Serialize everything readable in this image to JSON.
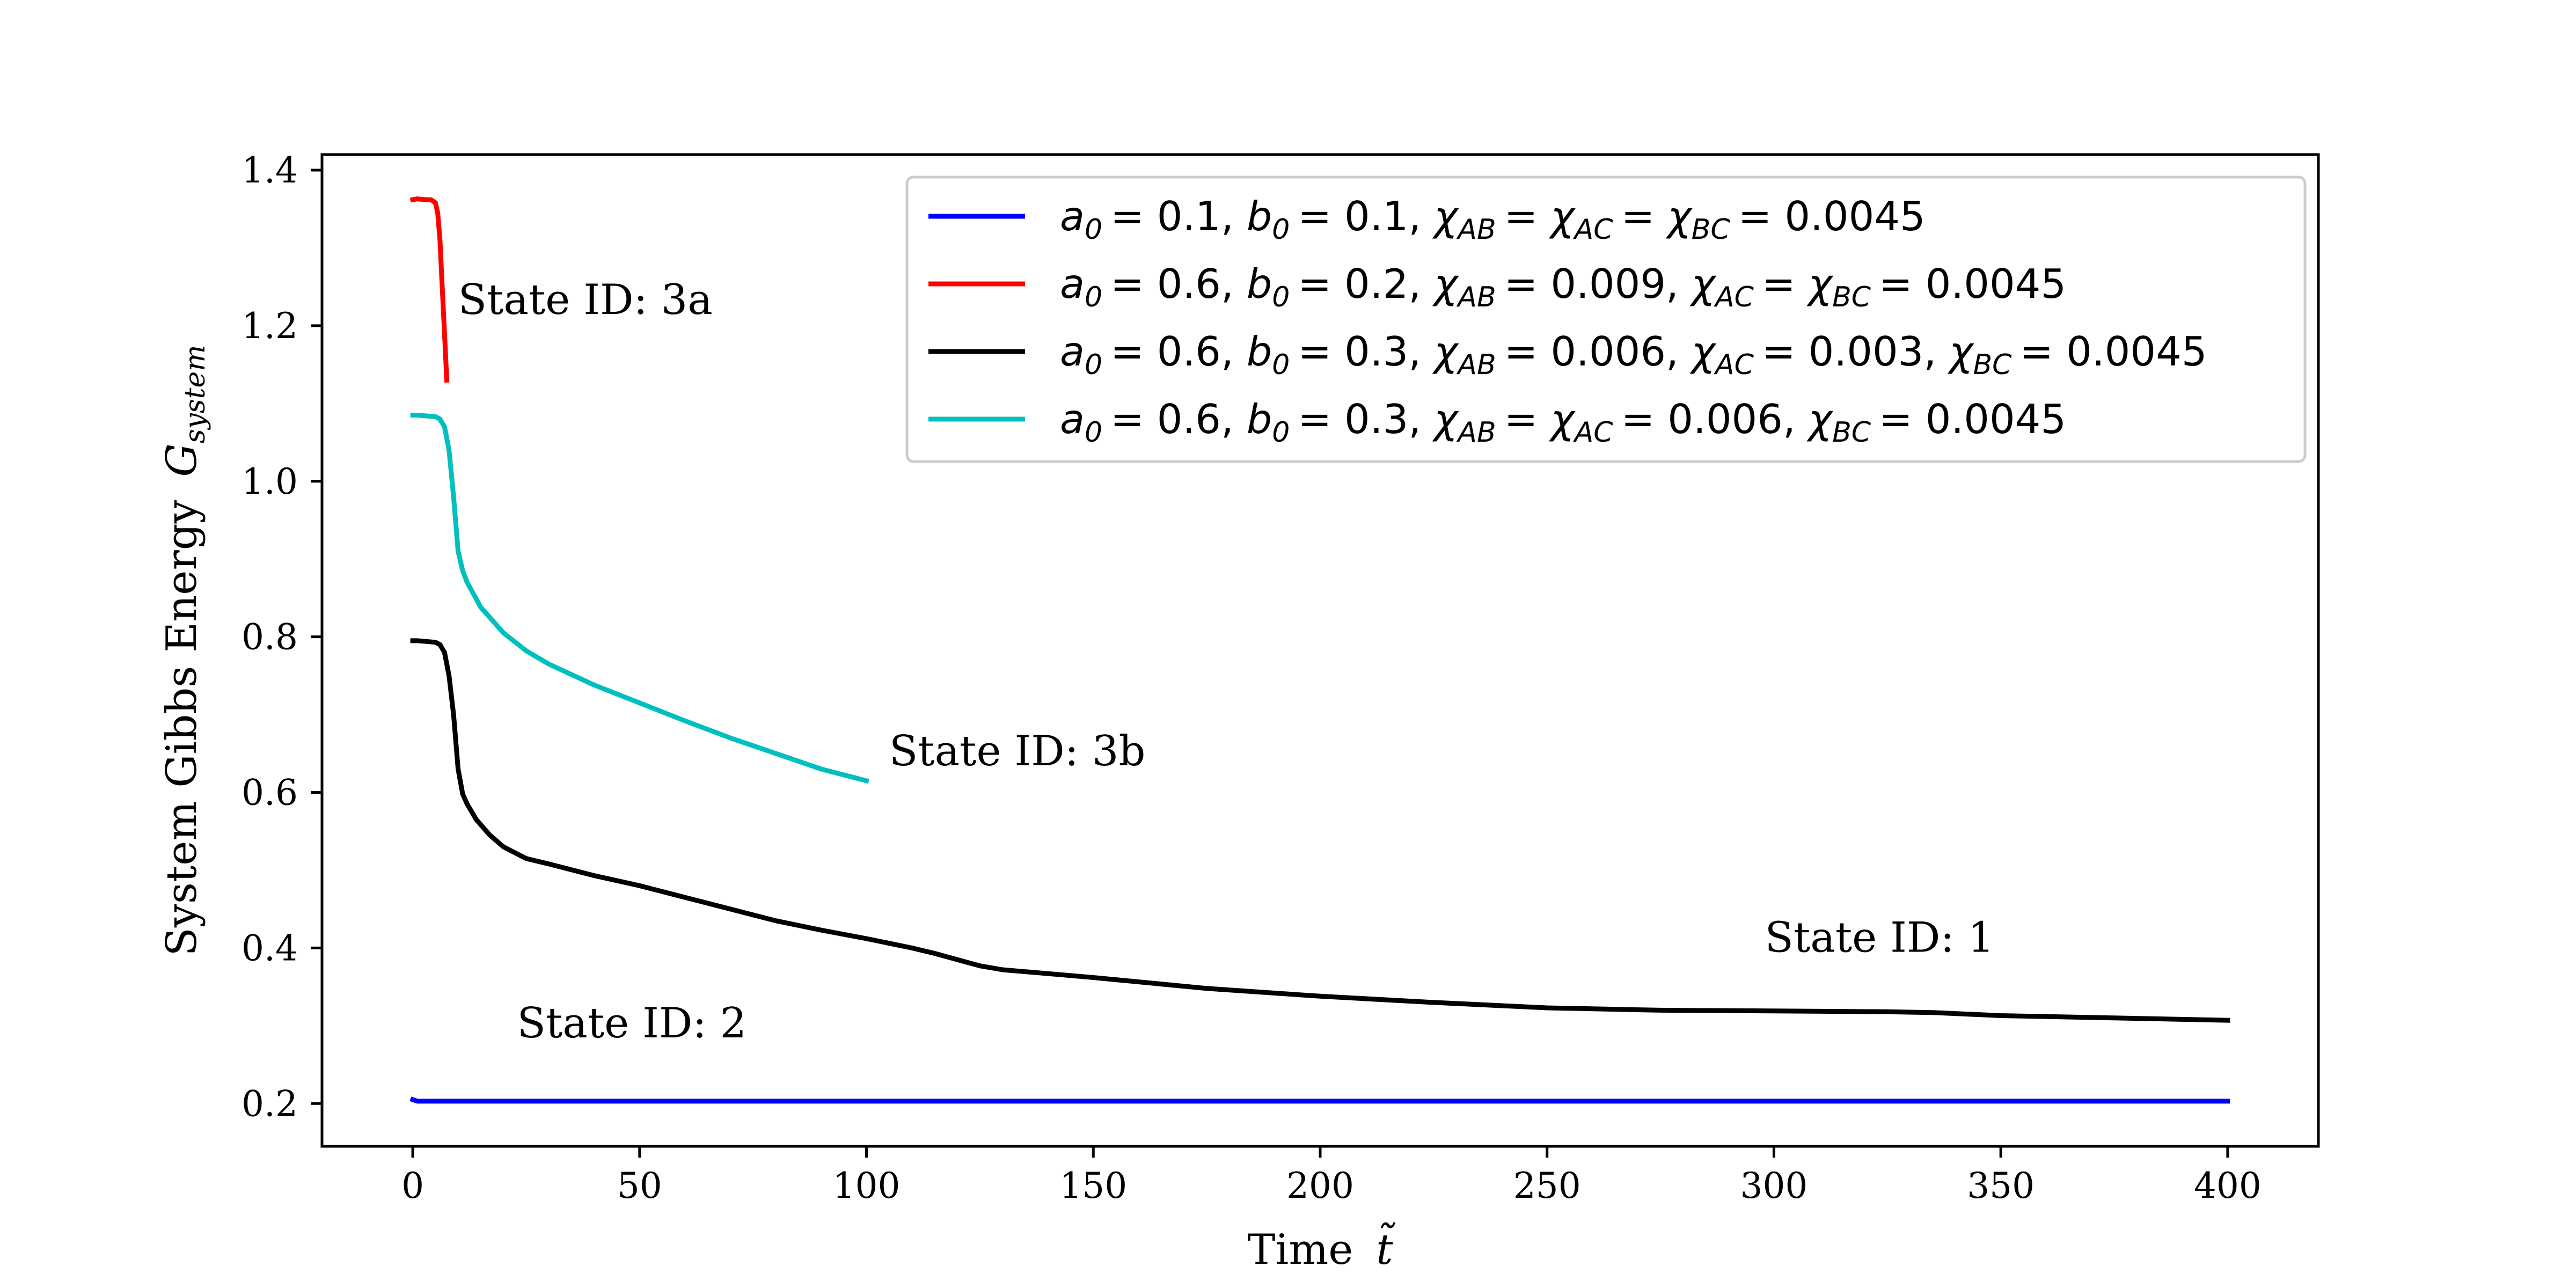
{
  "chart_data": {
    "type": "line",
    "title": "",
    "xlabel": "Time",
    "xlabel_symbol": "t̃",
    "ylabel": "System Gibbs Energy",
    "ylabel_symbol": "G",
    "ylabel_subscript": "system",
    "xlim": [
      -20,
      420
    ],
    "ylim": [
      0.145,
      1.42
    ],
    "xticks": [
      0,
      50,
      100,
      150,
      200,
      250,
      300,
      350,
      400
    ],
    "xtick_labels": [
      "0",
      "50",
      "100",
      "150",
      "200",
      "250",
      "300",
      "350",
      "400"
    ],
    "yticks": [
      0.2,
      0.4,
      0.6,
      0.8,
      1.0,
      1.2,
      1.4
    ],
    "ytick_labels": [
      "0.2",
      "0.4",
      "0.6",
      "0.8",
      "1.0",
      "1.2",
      "1.4"
    ],
    "grid": false,
    "legend_position": "top-right",
    "series": [
      {
        "name": "a0 = 0.1, b0 = 0.1, χAB = χAC = χBC = 0.0045",
        "legend": [
          [
            "a",
            "0"
          ],
          [
            "= 0.1, "
          ],
          [
            "b",
            "0"
          ],
          [
            "= 0.1, "
          ],
          [
            "χ",
            "AB"
          ],
          [
            "= "
          ],
          [
            "χ",
            "AC"
          ],
          [
            "= "
          ],
          [
            "χ",
            "BC"
          ],
          [
            "= 0.0045"
          ]
        ],
        "color": "#0000ff",
        "x": [
          0,
          1,
          2,
          400
        ],
        "y": [
          0.205,
          0.203,
          0.203,
          0.203
        ]
      },
      {
        "name": "a0 = 0.6, b0 = 0.2, χAB = 0.009, χAC = χBC = 0.0045",
        "legend": [
          [
            "a",
            "0"
          ],
          [
            "= 0.6, "
          ],
          [
            "b",
            "0"
          ],
          [
            "= 0.2, "
          ],
          [
            "χ",
            "AB"
          ],
          [
            "= 0.009, "
          ],
          [
            "χ",
            "AC"
          ],
          [
            "= "
          ],
          [
            "χ",
            "BC"
          ],
          [
            "= 0.0045"
          ]
        ],
        "color": "#ff0000",
        "x": [
          0,
          1,
          3,
          4,
          5,
          5.5,
          6,
          6.5,
          7,
          7.5
        ],
        "y": [
          1.362,
          1.363,
          1.362,
          1.362,
          1.358,
          1.345,
          1.31,
          1.25,
          1.19,
          1.13
        ]
      },
      {
        "name": "a0 = 0.6, b0 = 0.3, χAB = 0.006, χAC = 0.003, χBC = 0.0045",
        "legend": [
          [
            "a",
            "0"
          ],
          [
            "= 0.6, "
          ],
          [
            "b",
            "0"
          ],
          [
            "= 0.3, "
          ],
          [
            "χ",
            "AB"
          ],
          [
            "= 0.006, "
          ],
          [
            "χ",
            "AC"
          ],
          [
            "= 0.003, "
          ],
          [
            "χ",
            "BC"
          ],
          [
            "= 0.0045"
          ]
        ],
        "color": "#000000",
        "x": [
          0,
          1,
          3,
          5,
          6,
          7,
          8,
          9,
          10,
          11,
          12,
          14,
          17,
          20,
          25,
          30,
          40,
          50,
          60,
          70,
          80,
          90,
          100,
          110,
          115,
          120,
          125,
          130,
          140,
          150,
          175,
          200,
          225,
          250,
          275,
          300,
          325,
          335,
          350,
          375,
          400
        ],
        "y": [
          0.795,
          0.795,
          0.794,
          0.793,
          0.79,
          0.78,
          0.75,
          0.7,
          0.63,
          0.598,
          0.585,
          0.565,
          0.545,
          0.53,
          0.515,
          0.508,
          0.493,
          0.48,
          0.465,
          0.45,
          0.435,
          0.423,
          0.412,
          0.4,
          0.393,
          0.385,
          0.377,
          0.372,
          0.367,
          0.362,
          0.348,
          0.338,
          0.33,
          0.323,
          0.32,
          0.319,
          0.318,
          0.317,
          0.313,
          0.31,
          0.307
        ]
      },
      {
        "name": "a0 = 0.6, b0 = 0.3, χAB = χAC = 0.006, χBC = 0.0045",
        "legend": [
          [
            "a",
            "0"
          ],
          [
            "= 0.6, "
          ],
          [
            "b",
            "0"
          ],
          [
            "= 0.3, "
          ],
          [
            "χ",
            "AB"
          ],
          [
            "= "
          ],
          [
            "χ",
            "AC"
          ],
          [
            "= 0.006, "
          ],
          [
            "χ",
            "BC"
          ],
          [
            "= 0.0045"
          ]
        ],
        "color": "#00bfbf",
        "x": [
          0,
          1,
          3,
          5,
          6,
          7,
          8,
          9,
          10,
          11,
          12,
          15,
          20,
          25,
          30,
          40,
          50,
          60,
          70,
          80,
          90,
          100
        ],
        "y": [
          1.085,
          1.085,
          1.084,
          1.083,
          1.08,
          1.07,
          1.04,
          0.98,
          0.91,
          0.885,
          0.87,
          0.838,
          0.805,
          0.782,
          0.765,
          0.738,
          0.715,
          0.692,
          0.67,
          0.65,
          0.63,
          0.615
        ]
      }
    ],
    "annotations": [
      {
        "text": "State ID: 3a",
        "x": 10,
        "y": 1.215
      },
      {
        "text": "State ID: 3b",
        "x": 105,
        "y": 0.635
      },
      {
        "text": "State ID: 1",
        "x": 298,
        "y": 0.395
      },
      {
        "text": "State ID: 2",
        "x": 23,
        "y": 0.285
      }
    ]
  }
}
